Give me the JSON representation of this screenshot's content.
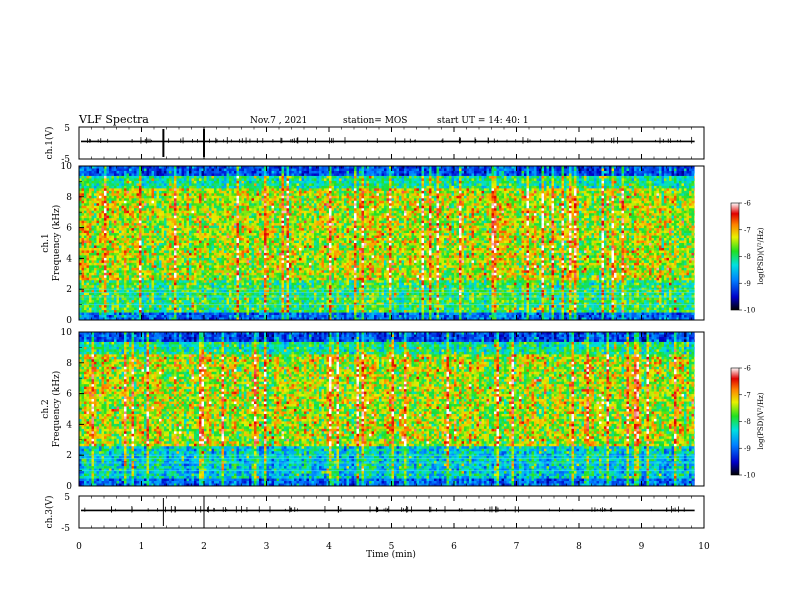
{
  "header": {
    "title": "VLF Spectra",
    "date": "Nov.7  , 2021",
    "station": "station= MOS",
    "start_ut": "start  UT  =   14: 40: 1"
  },
  "chart_data": [
    {
      "id": "ch1_waveform",
      "type": "line",
      "ylabel": "ch.1(V)",
      "ylim": [
        -5,
        5
      ],
      "yticks": [
        "5",
        "-5"
      ],
      "xlim": [
        0,
        10
      ]
    },
    {
      "id": "ch1_spectrogram",
      "type": "heatmap",
      "ylabel_top": "ch.1",
      "ylabel": "Frequency (kHz)",
      "ylim": [
        0,
        10
      ],
      "yticks": [
        "0",
        "2",
        "4",
        "6",
        "8",
        "10"
      ],
      "xlim": [
        0,
        10
      ],
      "colorbar": {
        "label": "log(PSD)(V²/Hz)",
        "min": -10,
        "max": -6,
        "ticks": [
          "-6",
          "-7",
          "-8",
          "-9",
          "-10"
        ]
      }
    },
    {
      "id": "ch2_spectrogram",
      "type": "heatmap",
      "ylabel_top": "ch.2",
      "ylabel": "Frequency (kHz)",
      "ylim": [
        0,
        10
      ],
      "yticks": [
        "0",
        "2",
        "4",
        "6",
        "8",
        "10"
      ],
      "xlim": [
        0,
        10
      ],
      "colorbar": {
        "label": "log(PSD)(V²/Hz)",
        "min": -10,
        "max": -6,
        "ticks": [
          "-6",
          "-7",
          "-8",
          "-9",
          "-10"
        ]
      }
    },
    {
      "id": "ch3_waveform",
      "type": "line",
      "ylabel": "ch.3(V)",
      "ylim": [
        -5,
        5
      ],
      "yticks": [
        "5",
        "-5"
      ],
      "xlim": [
        0,
        10
      ],
      "xlabel": "Time (min)",
      "xticks": [
        "0",
        "1",
        "2",
        "3",
        "4",
        "5",
        "6",
        "7",
        "8",
        "9",
        "10"
      ]
    }
  ]
}
